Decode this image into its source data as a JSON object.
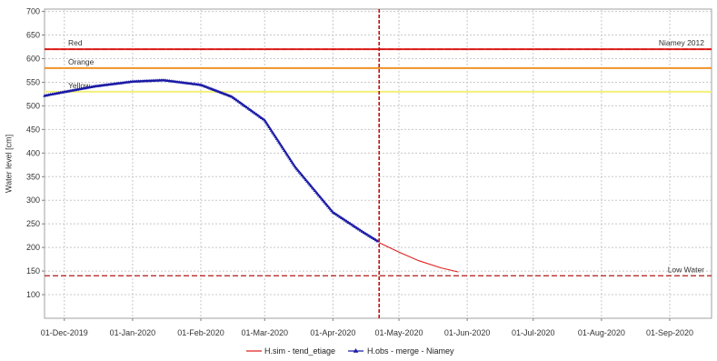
{
  "chart_data": {
    "type": "line",
    "ylabel": "Water level [cm]",
    "xlabel": "",
    "ylim": [
      50,
      705
    ],
    "xlim": [
      "2019-11-22",
      "2020-09-20"
    ],
    "y_ticks": [
      100,
      150,
      200,
      250,
      300,
      350,
      400,
      450,
      500,
      550,
      600,
      650,
      700
    ],
    "x_ticks": [
      {
        "date": "2019-12-01",
        "label": "01-Dec-2019"
      },
      {
        "date": "2020-01-01",
        "label": "01-Jan-2020"
      },
      {
        "date": "2020-02-01",
        "label": "01-Feb-2020"
      },
      {
        "date": "2020-03-01",
        "label": "01-Mar-2020"
      },
      {
        "date": "2020-04-01",
        "label": "01-Apr-2020"
      },
      {
        "date": "2020-05-01",
        "label": "01-May-2020"
      },
      {
        "date": "2020-06-01",
        "label": "01-Jun-2020"
      },
      {
        "date": "2020-07-01",
        "label": "01-Jul-2020"
      },
      {
        "date": "2020-08-01",
        "label": "01-Aug-2020"
      },
      {
        "date": "2020-09-01",
        "label": "01-Sep-2020"
      }
    ],
    "grid": true,
    "current_date": "2020-04-22",
    "thresholds": [
      {
        "label": "Red",
        "value": 620,
        "color": "#e8201c",
        "style": "solid",
        "label_side": "left"
      },
      {
        "label": "Orange",
        "value": 580,
        "color": "#f0922a",
        "style": "solid",
        "label_side": "left"
      },
      {
        "label": "Yellow",
        "value": 530,
        "color": "#f2f07a",
        "style": "solid",
        "label_side": "left"
      },
      {
        "label": "Low Water",
        "value": 140,
        "color": "#b01818",
        "style": "dashed",
        "label_side": "right"
      }
    ],
    "reference_lines": [
      {
        "label": "Niamey 2012",
        "value": 620,
        "color": "#c01010",
        "style": "dashed"
      }
    ],
    "series": [
      {
        "name": "H.obs - merge - Niamey",
        "color": "#1a1aa6",
        "marker": "triangle",
        "x": [
          "2019-11-22",
          "2019-12-01",
          "2019-12-15",
          "2020-01-01",
          "2020-01-15",
          "2020-02-01",
          "2020-02-15",
          "2020-03-01",
          "2020-03-15",
          "2020-04-01",
          "2020-04-15",
          "2020-04-22"
        ],
        "y": [
          522,
          530,
          542,
          552,
          555,
          545,
          520,
          470,
          370,
          275,
          232,
          212
        ]
      },
      {
        "name": "H.sim - tend_etiage",
        "color": "#e02020",
        "marker": "none",
        "x": [
          "2020-04-22",
          "2020-05-01",
          "2020-05-10",
          "2020-05-20",
          "2020-05-28"
        ],
        "y": [
          210,
          190,
          172,
          157,
          148
        ]
      }
    ]
  }
}
